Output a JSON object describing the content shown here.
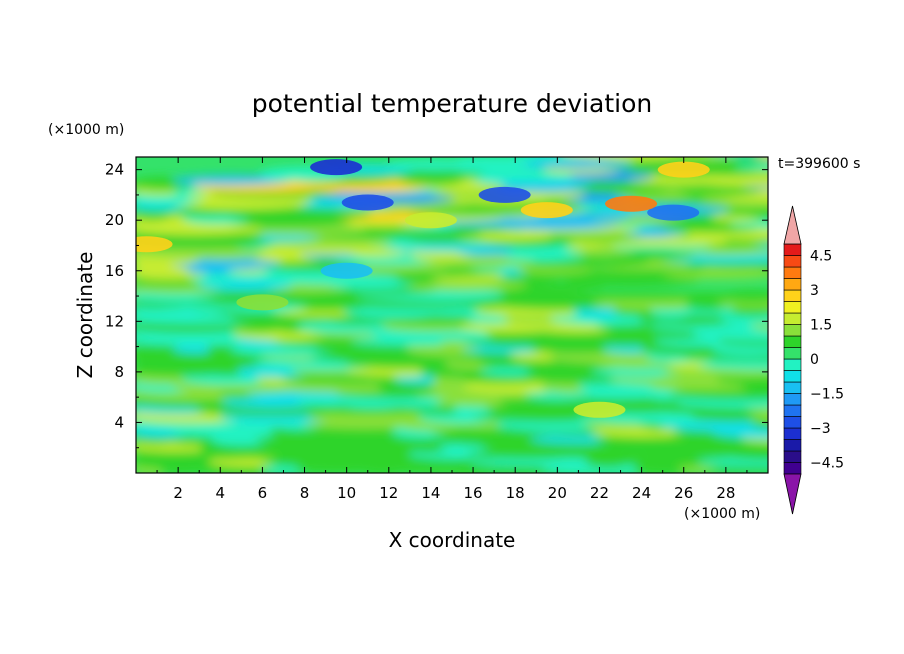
{
  "chart_data": {
    "type": "heatmap",
    "title": "potential temperature deviation",
    "xlabel": "X coordinate",
    "ylabel": "Z coordinate",
    "x_unit": "(×1000 m)",
    "y_unit": "(×1000 m)",
    "time_label": "t=399600 s",
    "xlim": [
      0,
      30
    ],
    "ylim": [
      0,
      25
    ],
    "x_ticks": [
      2,
      4,
      6,
      8,
      10,
      12,
      14,
      16,
      18,
      20,
      22,
      24,
      26,
      28
    ],
    "y_ticks": [
      4,
      8,
      12,
      16,
      20,
      24
    ],
    "colorbar": {
      "levels": [
        -5,
        -4.5,
        -4,
        -3.5,
        -3,
        -2.5,
        -2,
        -1.5,
        -1,
        -0.5,
        0,
        0.5,
        1,
        1.5,
        2,
        2.5,
        3,
        3.5,
        4,
        4.5,
        5
      ],
      "labels": [
        "4.5",
        "3",
        "1.5",
        "0",
        "−1.5",
        "−3",
        "−4.5"
      ],
      "label_values": [
        4.5,
        3,
        1.5,
        0,
        -1.5,
        -3,
        -4.5
      ],
      "colors": [
        "#400090",
        "#2a0d8a",
        "#1a1aa8",
        "#1c2fd0",
        "#1e4fe6",
        "#1f73f0",
        "#1f9af5",
        "#19c0f2",
        "#10e0e8",
        "#22f2c2",
        "#34e26a",
        "#2ed42a",
        "#8ae03a",
        "#c6ec30",
        "#f0f020",
        "#ffd21a",
        "#ffa812",
        "#ff7a10",
        "#f84a14",
        "#e41a1a"
      ],
      "over_color": "#f0a6a6",
      "under_color": "#8a14a8"
    },
    "features": [
      {
        "x": 9.5,
        "z": 24.2,
        "value": -3.5
      },
      {
        "x": 11.0,
        "z": 21.4,
        "value": -3.0
      },
      {
        "x": 17.5,
        "z": 22.0,
        "value": -3.0
      },
      {
        "x": 25.5,
        "z": 20.6,
        "value": -2.5
      },
      {
        "x": 23.5,
        "z": 21.3,
        "value": 3.5
      },
      {
        "x": 26.0,
        "z": 24.0,
        "value": 2.5
      },
      {
        "x": 19.5,
        "z": 20.8,
        "value": 2.5
      },
      {
        "x": 0.5,
        "z": 18.1,
        "value": 2.5
      },
      {
        "x": 14.0,
        "z": 20.0,
        "value": 1.5
      },
      {
        "x": 10.0,
        "z": 16.0,
        "value": -1.5
      },
      {
        "x": 22.0,
        "z": 5.0,
        "value": 1.5
      },
      {
        "x": 6.0,
        "z": 13.5,
        "value": 1.0
      }
    ]
  }
}
